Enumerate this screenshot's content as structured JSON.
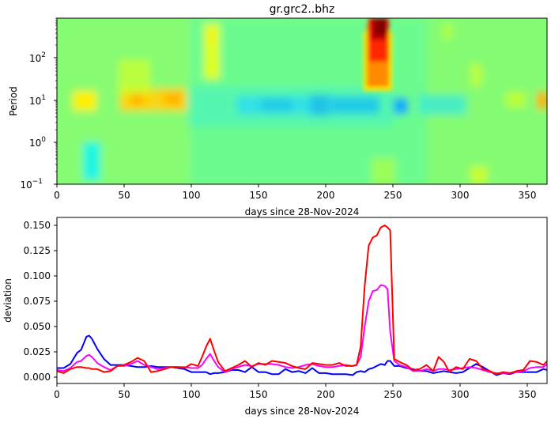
{
  "figure": {
    "title": "gr.grc2..bhz"
  },
  "chart_data": [
    {
      "type": "heatmap",
      "title": "gr.grc2..bhz",
      "xlabel": "days since 28-Nov-2024",
      "ylabel": "Period",
      "xlim": [
        0,
        365
      ],
      "ylim_log10": [
        -1,
        2.9
      ],
      "yscale": "log",
      "x_ticks": [
        0,
        50,
        100,
        150,
        200,
        250,
        300,
        350
      ],
      "y_ticks": [
        "10^-1",
        "10^0",
        "10^1",
        "10^2"
      ],
      "colormap": "jet",
      "features": [
        {
          "desc": "strong high-amplitude column (red)",
          "x_range": [
            230,
            245
          ],
          "period_range": [
            20,
            800
          ]
        },
        {
          "desc": "yellow/orange band near 10 s",
          "x_range": [
            15,
            95
          ],
          "period_approx": 8
        },
        {
          "desc": "blue band near 6-8 s",
          "x_range": [
            140,
            258
          ],
          "period_approx": 7
        },
        {
          "desc": "cyan patch at short periods",
          "x_range": [
            18,
            30
          ],
          "period_range": [
            0.15,
            0.8
          ]
        },
        {
          "desc": "yellow streak at long periods",
          "x_range": [
            108,
            118
          ],
          "period_range": [
            30,
            700
          ]
        },
        {
          "desc": "orange patch at right edge",
          "x_range": [
            358,
            365
          ],
          "period_approx": 8
        }
      ]
    },
    {
      "type": "line",
      "xlabel": "days since 28-Nov-2024",
      "ylabel": "deviation",
      "xlim": [
        0,
        365
      ],
      "ylim": [
        -0.007,
        0.157
      ],
      "x_ticks": [
        0,
        50,
        100,
        150,
        200,
        250,
        300,
        350
      ],
      "y_ticks": [
        "0.000",
        "0.025",
        "0.050",
        "0.075",
        "0.100",
        "0.125",
        "0.150"
      ],
      "x": [
        0,
        5,
        10,
        15,
        18,
        22,
        24,
        26,
        30,
        35,
        40,
        45,
        50,
        55,
        60,
        65,
        70,
        75,
        80,
        85,
        90,
        95,
        100,
        105,
        108,
        111,
        114,
        117,
        120,
        125,
        130,
        135,
        140,
        145,
        150,
        155,
        160,
        165,
        170,
        175,
        180,
        185,
        190,
        195,
        200,
        205,
        210,
        215,
        220,
        223,
        226,
        229,
        232,
        235,
        238,
        241,
        244,
        246,
        248,
        251,
        255,
        260,
        265,
        270,
        275,
        280,
        284,
        288,
        292,
        297,
        302,
        307,
        312,
        317,
        322,
        327,
        332,
        337,
        342,
        347,
        352,
        357,
        362,
        365
      ],
      "series": [
        {
          "name": "blue",
          "color": "#0000ff",
          "values": [
            0.009,
            0.009,
            0.013,
            0.024,
            0.027,
            0.04,
            0.041,
            0.038,
            0.028,
            0.018,
            0.012,
            0.012,
            0.012,
            0.011,
            0.01,
            0.01,
            0.011,
            0.01,
            0.01,
            0.01,
            0.009,
            0.008,
            0.005,
            0.005,
            0.005,
            0.005,
            0.003,
            0.004,
            0.004,
            0.005,
            0.007,
            0.007,
            0.005,
            0.01,
            0.005,
            0.005,
            0.003,
            0.003,
            0.008,
            0.005,
            0.006,
            0.004,
            0.009,
            0.004,
            0.004,
            0.003,
            0.003,
            0.003,
            0.002,
            0.005,
            0.006,
            0.005,
            0.008,
            0.009,
            0.011,
            0.013,
            0.012,
            0.016,
            0.016,
            0.011,
            0.011,
            0.009,
            0.008,
            0.006,
            0.006,
            0.004,
            0.005,
            0.006,
            0.005,
            0.004,
            0.005,
            0.009,
            0.013,
            0.01,
            0.006,
            0.002,
            0.004,
            0.003,
            0.005,
            0.005,
            0.005,
            0.005,
            0.008,
            0.007
          ]
        },
        {
          "name": "magenta",
          "color": "#ff00ff",
          "values": [
            0.007,
            0.006,
            0.009,
            0.015,
            0.016,
            0.021,
            0.022,
            0.02,
            0.014,
            0.01,
            0.007,
            0.011,
            0.011,
            0.013,
            0.016,
            0.012,
            0.01,
            0.008,
            0.009,
            0.01,
            0.01,
            0.01,
            0.009,
            0.009,
            0.012,
            0.018,
            0.023,
            0.016,
            0.01,
            0.005,
            0.008,
            0.01,
            0.012,
            0.011,
            0.013,
            0.013,
            0.013,
            0.012,
            0.01,
            0.009,
            0.01,
            0.012,
            0.013,
            0.011,
            0.01,
            0.01,
            0.011,
            0.012,
            0.011,
            0.012,
            0.02,
            0.05,
            0.075,
            0.085,
            0.086,
            0.091,
            0.09,
            0.087,
            0.045,
            0.016,
            0.012,
            0.01,
            0.006,
            0.006,
            0.008,
            0.006,
            0.008,
            0.008,
            0.007,
            0.008,
            0.009,
            0.01,
            0.009,
            0.007,
            0.005,
            0.004,
            0.004,
            0.004,
            0.005,
            0.006,
            0.009,
            0.01,
            0.01,
            0.013
          ]
        },
        {
          "name": "red",
          "color": "#ff0000",
          "values": [
            0.006,
            0.004,
            0.008,
            0.01,
            0.01,
            0.009,
            0.009,
            0.008,
            0.008,
            0.005,
            0.006,
            0.011,
            0.012,
            0.015,
            0.019,
            0.016,
            0.005,
            0.006,
            0.008,
            0.01,
            0.01,
            0.009,
            0.013,
            0.011,
            0.02,
            0.03,
            0.038,
            0.026,
            0.015,
            0.006,
            0.009,
            0.012,
            0.016,
            0.01,
            0.014,
            0.012,
            0.016,
            0.015,
            0.014,
            0.011,
            0.009,
            0.008,
            0.014,
            0.013,
            0.012,
            0.012,
            0.014,
            0.011,
            0.011,
            0.012,
            0.03,
            0.09,
            0.13,
            0.138,
            0.14,
            0.148,
            0.15,
            0.148,
            0.145,
            0.018,
            0.015,
            0.012,
            0.007,
            0.008,
            0.012,
            0.006,
            0.02,
            0.015,
            0.005,
            0.01,
            0.008,
            0.018,
            0.016,
            0.008,
            0.006,
            0.003,
            0.005,
            0.004,
            0.006,
            0.007,
            0.016,
            0.015,
            0.012,
            0.016
          ]
        }
      ]
    }
  ]
}
